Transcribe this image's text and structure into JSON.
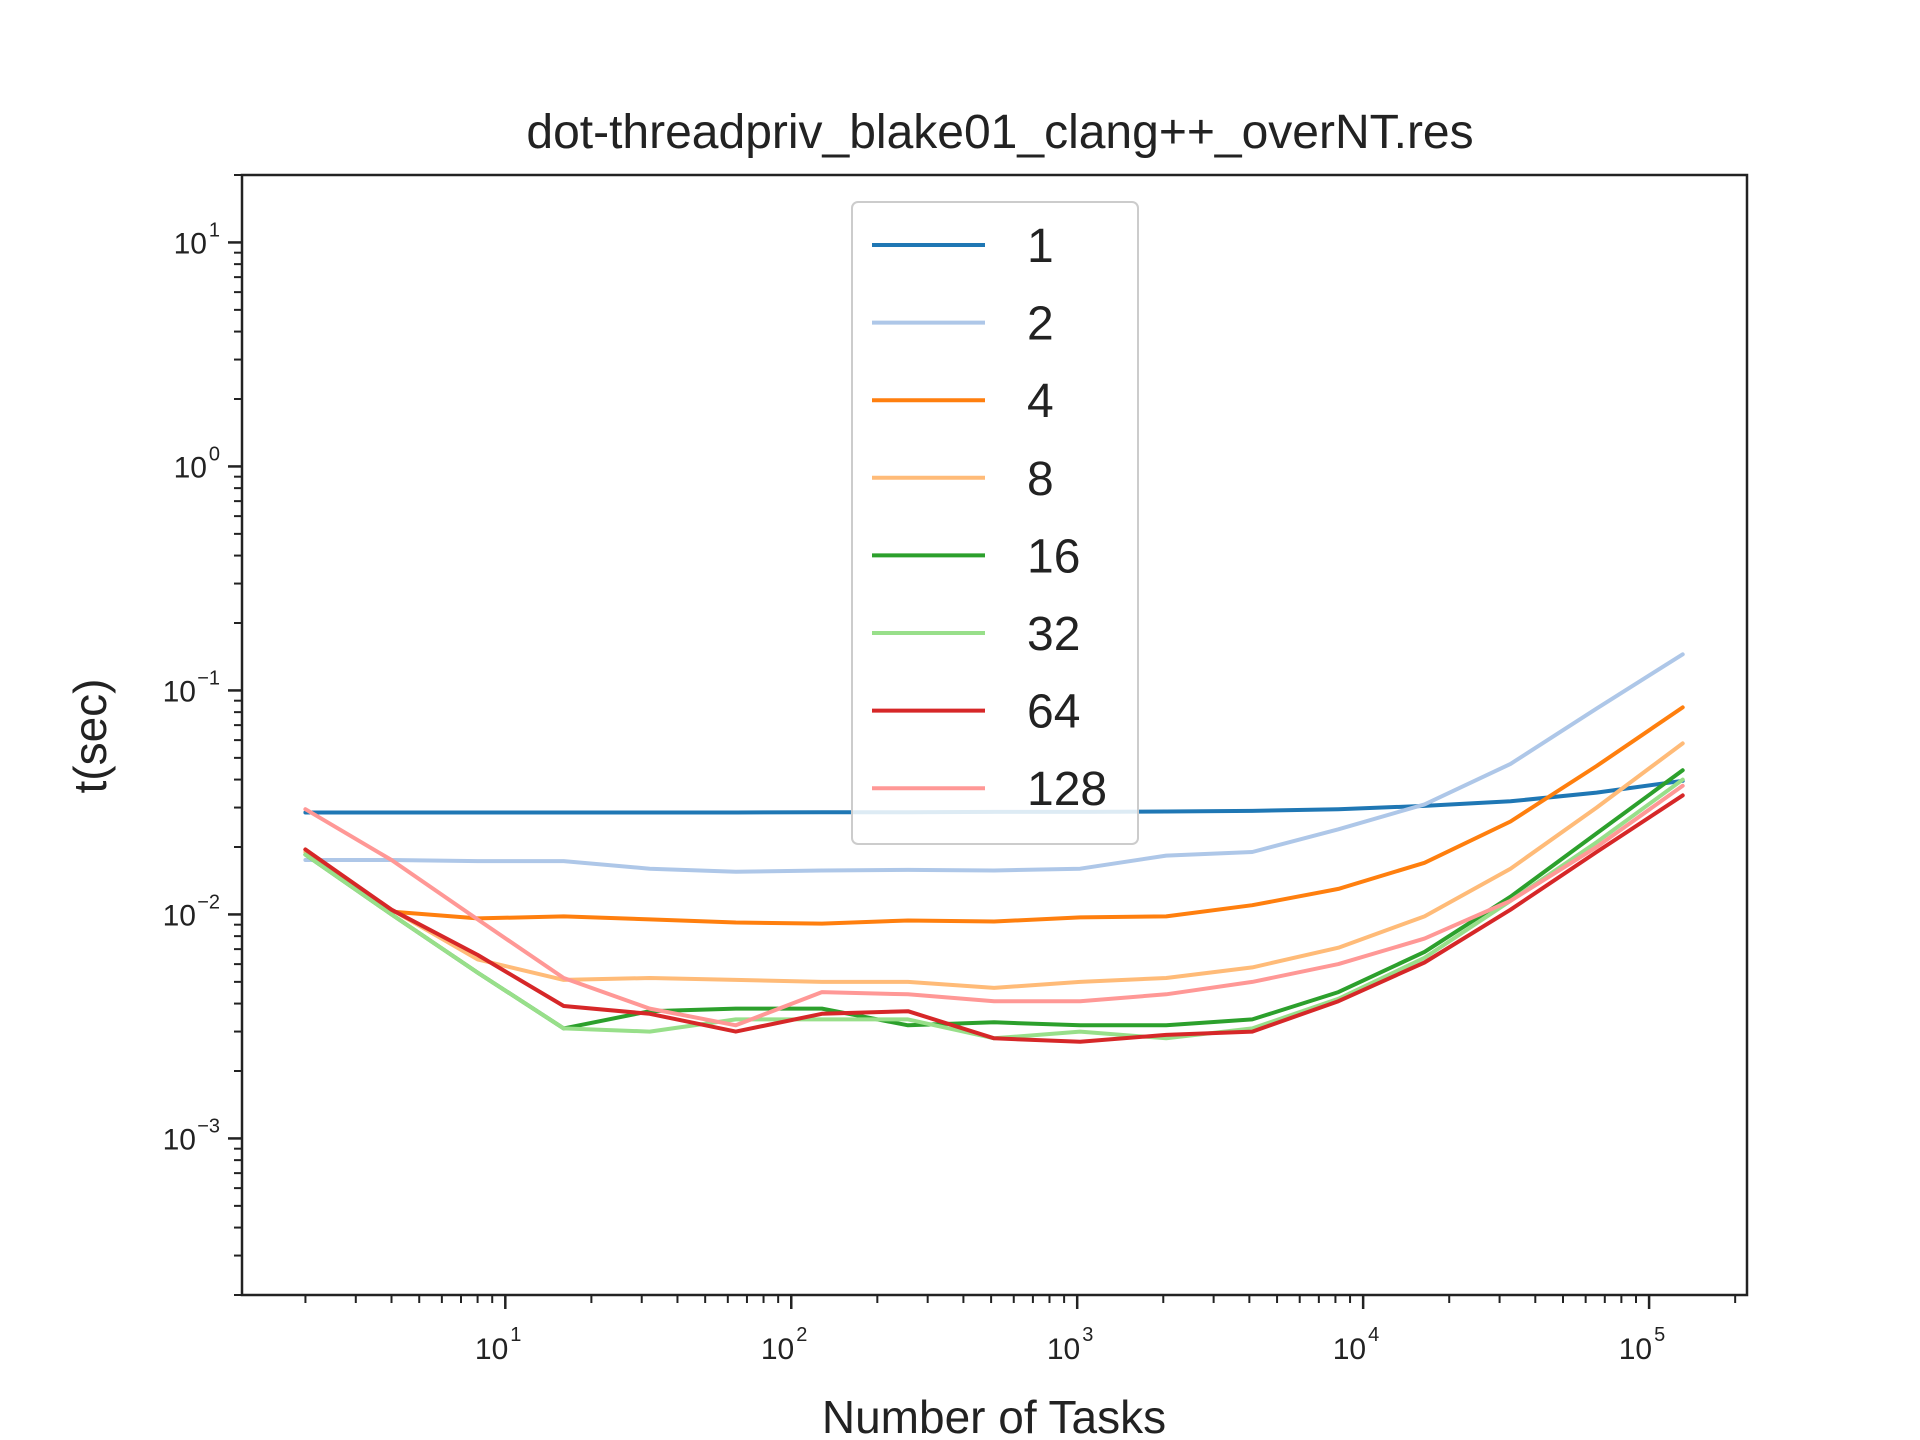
{
  "chart_data": {
    "type": "line",
    "title": "dot-threadpriv_blake01_clang++_overNT.res",
    "xlabel": "Number of Tasks",
    "ylabel": "t(sec)",
    "xscale": "log",
    "yscale": "log",
    "xlim": [
      1.2,
      220000
    ],
    "ylim": [
      0.0002,
      20
    ],
    "grid": false,
    "legend_position": "top-center",
    "x_ticks": [
      {
        "base": "10",
        "exp": "1",
        "value": 10
      },
      {
        "base": "10",
        "exp": "2",
        "value": 100
      },
      {
        "base": "10",
        "exp": "3",
        "value": 1000
      },
      {
        "base": "10",
        "exp": "4",
        "value": 10000
      },
      {
        "base": "10",
        "exp": "5",
        "value": 100000
      }
    ],
    "y_ticks": [
      {
        "base": "10",
        "exp": "−3",
        "value": 0.001
      },
      {
        "base": "10",
        "exp": "−2",
        "value": 0.01
      },
      {
        "base": "10",
        "exp": "−1",
        "value": 0.1
      },
      {
        "base": "10",
        "exp": "0",
        "value": 1
      },
      {
        "base": "10",
        "exp": "1",
        "value": 10
      }
    ],
    "x": [
      2,
      4,
      8,
      16,
      32,
      64,
      128,
      256,
      512,
      1024,
      2048,
      4096,
      8192,
      16384,
      32768,
      65536,
      131072
    ],
    "series": [
      {
        "name": "1",
        "color": "#1f77b4",
        "values": [
          0.0285,
          0.0285,
          0.0285,
          0.0285,
          0.0285,
          0.0285,
          0.0286,
          0.0286,
          0.0287,
          0.0287,
          0.0288,
          0.029,
          0.0295,
          0.0305,
          0.032,
          0.035,
          0.0395
        ]
      },
      {
        "name": "2",
        "color": "#aec7e8",
        "values": [
          0.0175,
          0.0175,
          0.0173,
          0.0173,
          0.016,
          0.0155,
          0.0157,
          0.0158,
          0.0157,
          0.016,
          0.0183,
          0.019,
          0.024,
          0.031,
          0.047,
          0.083,
          0.145
        ]
      },
      {
        "name": "4",
        "color": "#ff7f0e",
        "values": [
          0.0195,
          0.0103,
          0.0096,
          0.0098,
          0.0095,
          0.0092,
          0.0091,
          0.0094,
          0.0093,
          0.0097,
          0.0098,
          0.011,
          0.013,
          0.017,
          0.026,
          0.046,
          0.084
        ]
      },
      {
        "name": "8",
        "color": "#ffbb78",
        "values": [
          0.019,
          0.0105,
          0.0063,
          0.0051,
          0.0052,
          0.0051,
          0.005,
          0.005,
          0.0047,
          0.005,
          0.0052,
          0.0058,
          0.0071,
          0.0098,
          0.016,
          0.03,
          0.058
        ]
      },
      {
        "name": "16",
        "color": "#2ca02c",
        "values": [
          0.0185,
          0.01,
          0.0055,
          0.0031,
          0.0037,
          0.0038,
          0.0038,
          0.0032,
          0.0033,
          0.0032,
          0.0032,
          0.0034,
          0.0045,
          0.0068,
          0.012,
          0.023,
          0.044
        ]
      },
      {
        "name": "32",
        "color": "#98df8a",
        "values": [
          0.0185,
          0.01,
          0.0055,
          0.0031,
          0.003,
          0.0034,
          0.0034,
          0.0034,
          0.0028,
          0.003,
          0.0028,
          0.0031,
          0.0042,
          0.0064,
          0.0115,
          0.021,
          0.04
        ]
      },
      {
        "name": "64",
        "color": "#d62728",
        "values": [
          0.0195,
          0.0105,
          0.0066,
          0.0039,
          0.0036,
          0.003,
          0.0036,
          0.0037,
          0.0028,
          0.0027,
          0.0029,
          0.003,
          0.0041,
          0.0061,
          0.0105,
          0.019,
          0.034
        ]
      },
      {
        "name": "128",
        "color": "#ff9896",
        "values": [
          0.0295,
          0.0175,
          0.0095,
          0.0052,
          0.0038,
          0.0032,
          0.0045,
          0.0044,
          0.0041,
          0.0041,
          0.0044,
          0.005,
          0.006,
          0.0078,
          0.0115,
          0.02,
          0.0375
        ]
      }
    ]
  }
}
